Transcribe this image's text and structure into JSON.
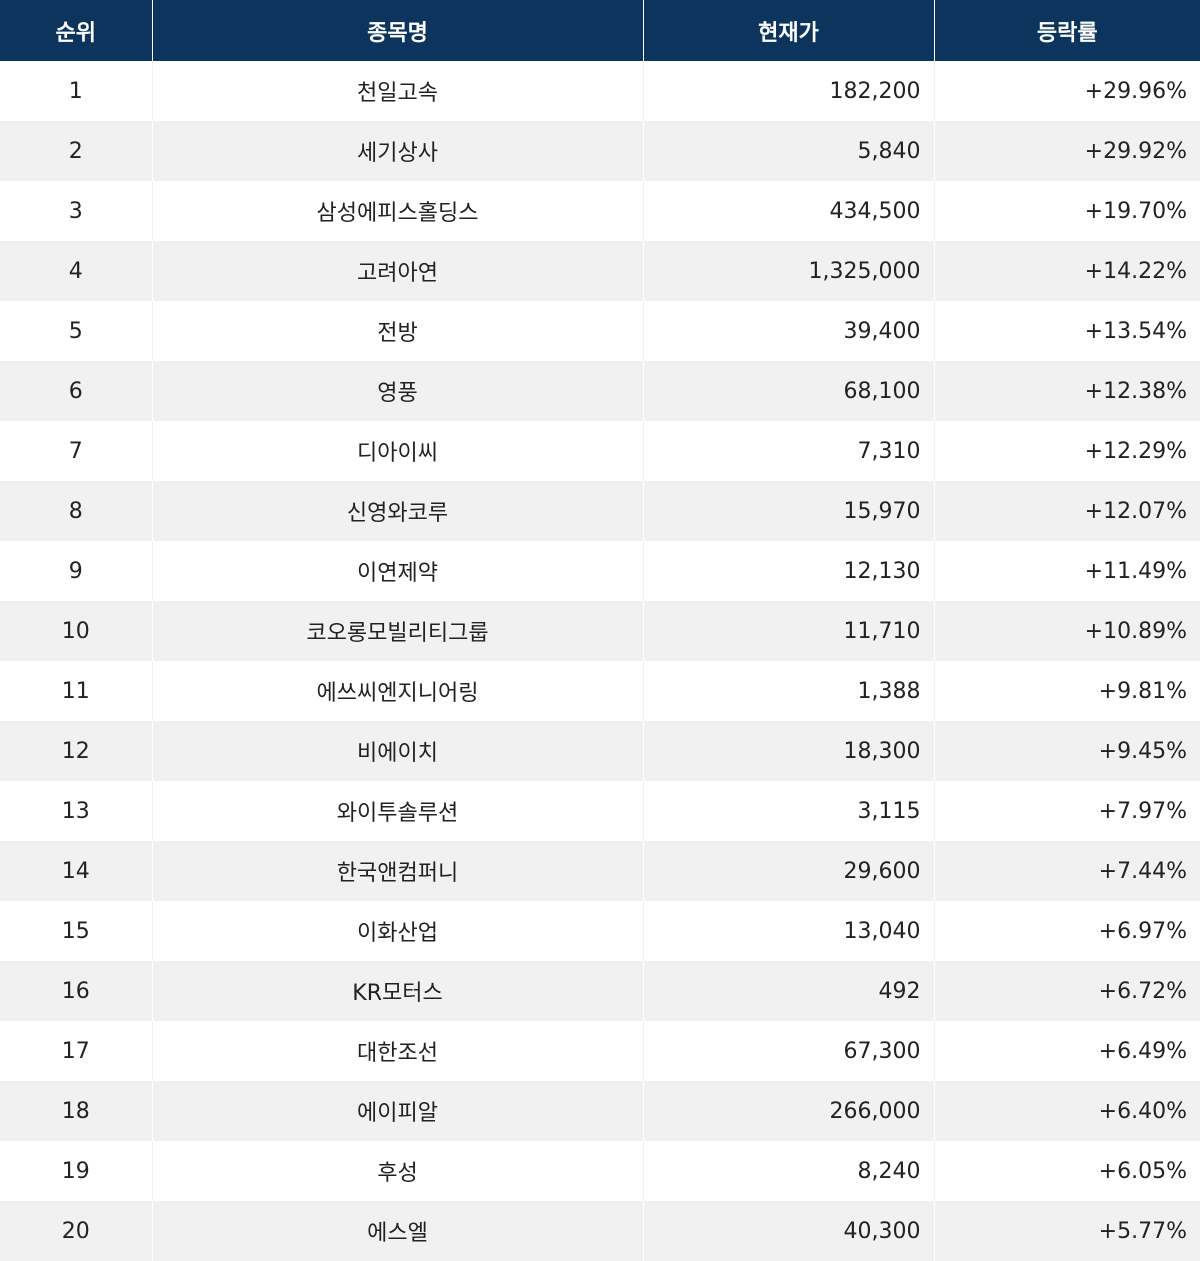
{
  "headers": {
    "rank": "순위",
    "name": "종목명",
    "price": "현재가",
    "change": "등락률"
  },
  "rows": [
    {
      "rank": "1",
      "name": "천일고속",
      "price": "182,200",
      "change": "+29.96%"
    },
    {
      "rank": "2",
      "name": "세기상사",
      "price": "5,840",
      "change": "+29.92%"
    },
    {
      "rank": "3",
      "name": "삼성에피스홀딩스",
      "price": "434,500",
      "change": "+19.70%"
    },
    {
      "rank": "4",
      "name": "고려아연",
      "price": "1,325,000",
      "change": "+14.22%"
    },
    {
      "rank": "5",
      "name": "전방",
      "price": "39,400",
      "change": "+13.54%"
    },
    {
      "rank": "6",
      "name": "영풍",
      "price": "68,100",
      "change": "+12.38%"
    },
    {
      "rank": "7",
      "name": "디아이씨",
      "price": "7,310",
      "change": "+12.29%"
    },
    {
      "rank": "8",
      "name": "신영와코루",
      "price": "15,970",
      "change": "+12.07%"
    },
    {
      "rank": "9",
      "name": "이연제약",
      "price": "12,130",
      "change": "+11.49%"
    },
    {
      "rank": "10",
      "name": "코오롱모빌리티그룹",
      "price": "11,710",
      "change": "+10.89%"
    },
    {
      "rank": "11",
      "name": "에쓰씨엔지니어링",
      "price": "1,388",
      "change": "+9.81%"
    },
    {
      "rank": "12",
      "name": "비에이치",
      "price": "18,300",
      "change": "+9.45%"
    },
    {
      "rank": "13",
      "name": "와이투솔루션",
      "price": "3,115",
      "change": "+7.97%"
    },
    {
      "rank": "14",
      "name": "한국앤컴퍼니",
      "price": "29,600",
      "change": "+7.44%"
    },
    {
      "rank": "15",
      "name": "이화산업",
      "price": "13,040",
      "change": "+6.97%"
    },
    {
      "rank": "16",
      "name": "KR모터스",
      "price": "492",
      "change": "+6.72%"
    },
    {
      "rank": "17",
      "name": "대한조선",
      "price": "67,300",
      "change": "+6.49%"
    },
    {
      "rank": "18",
      "name": "에이피알",
      "price": "266,000",
      "change": "+6.40%"
    },
    {
      "rank": "19",
      "name": "후성",
      "price": "8,240",
      "change": "+6.05%"
    },
    {
      "rank": "20",
      "name": "에스엘",
      "price": "40,300",
      "change": "+5.77%"
    }
  ]
}
